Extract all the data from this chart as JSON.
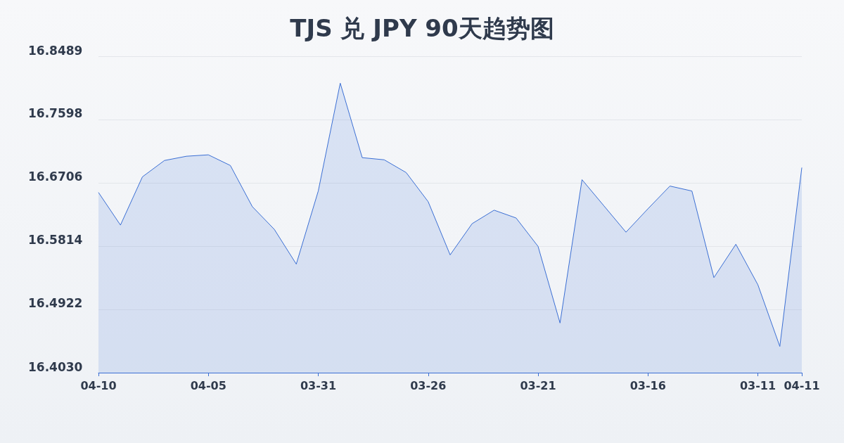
{
  "chart_data": {
    "type": "area",
    "title": "TJS 兑 JPY 90天趋势图",
    "categories": [
      "04-10",
      null,
      null,
      null,
      null,
      "04-05",
      null,
      null,
      null,
      null,
      "03-31",
      null,
      null,
      null,
      null,
      "03-26",
      null,
      null,
      null,
      null,
      "03-21",
      null,
      null,
      null,
      null,
      "03-16",
      null,
      null,
      null,
      null,
      "03-11",
      null,
      "04-11"
    ],
    "series": [
      {
        "color": "#3b6fd4",
        "values": [
          16.657,
          16.611,
          16.679,
          16.702,
          16.708,
          16.71,
          16.695,
          16.637,
          16.605,
          16.556,
          16.659,
          16.811,
          16.706,
          16.703,
          16.685,
          16.644,
          16.569,
          16.613,
          16.632,
          16.621,
          16.581,
          16.473,
          16.675,
          16.638,
          16.601,
          16.634,
          16.666,
          16.659,
          16.537,
          16.584,
          16.527,
          16.44,
          16.692
        ]
      }
    ],
    "ylim": [
      16.403,
      16.8489
    ],
    "yticks": [
      {
        "value": 16.403,
        "label": "16.4030"
      },
      {
        "value": 16.4922,
        "label": "16.4922"
      },
      {
        "value": 16.5814,
        "label": "16.5814"
      },
      {
        "value": 16.6706,
        "label": "16.6706"
      },
      {
        "value": 16.7598,
        "label": "16.7598"
      },
      {
        "value": 16.8489,
        "label": "16.8489"
      }
    ],
    "grid": "y",
    "marker": "none",
    "line_style": "solid"
  }
}
